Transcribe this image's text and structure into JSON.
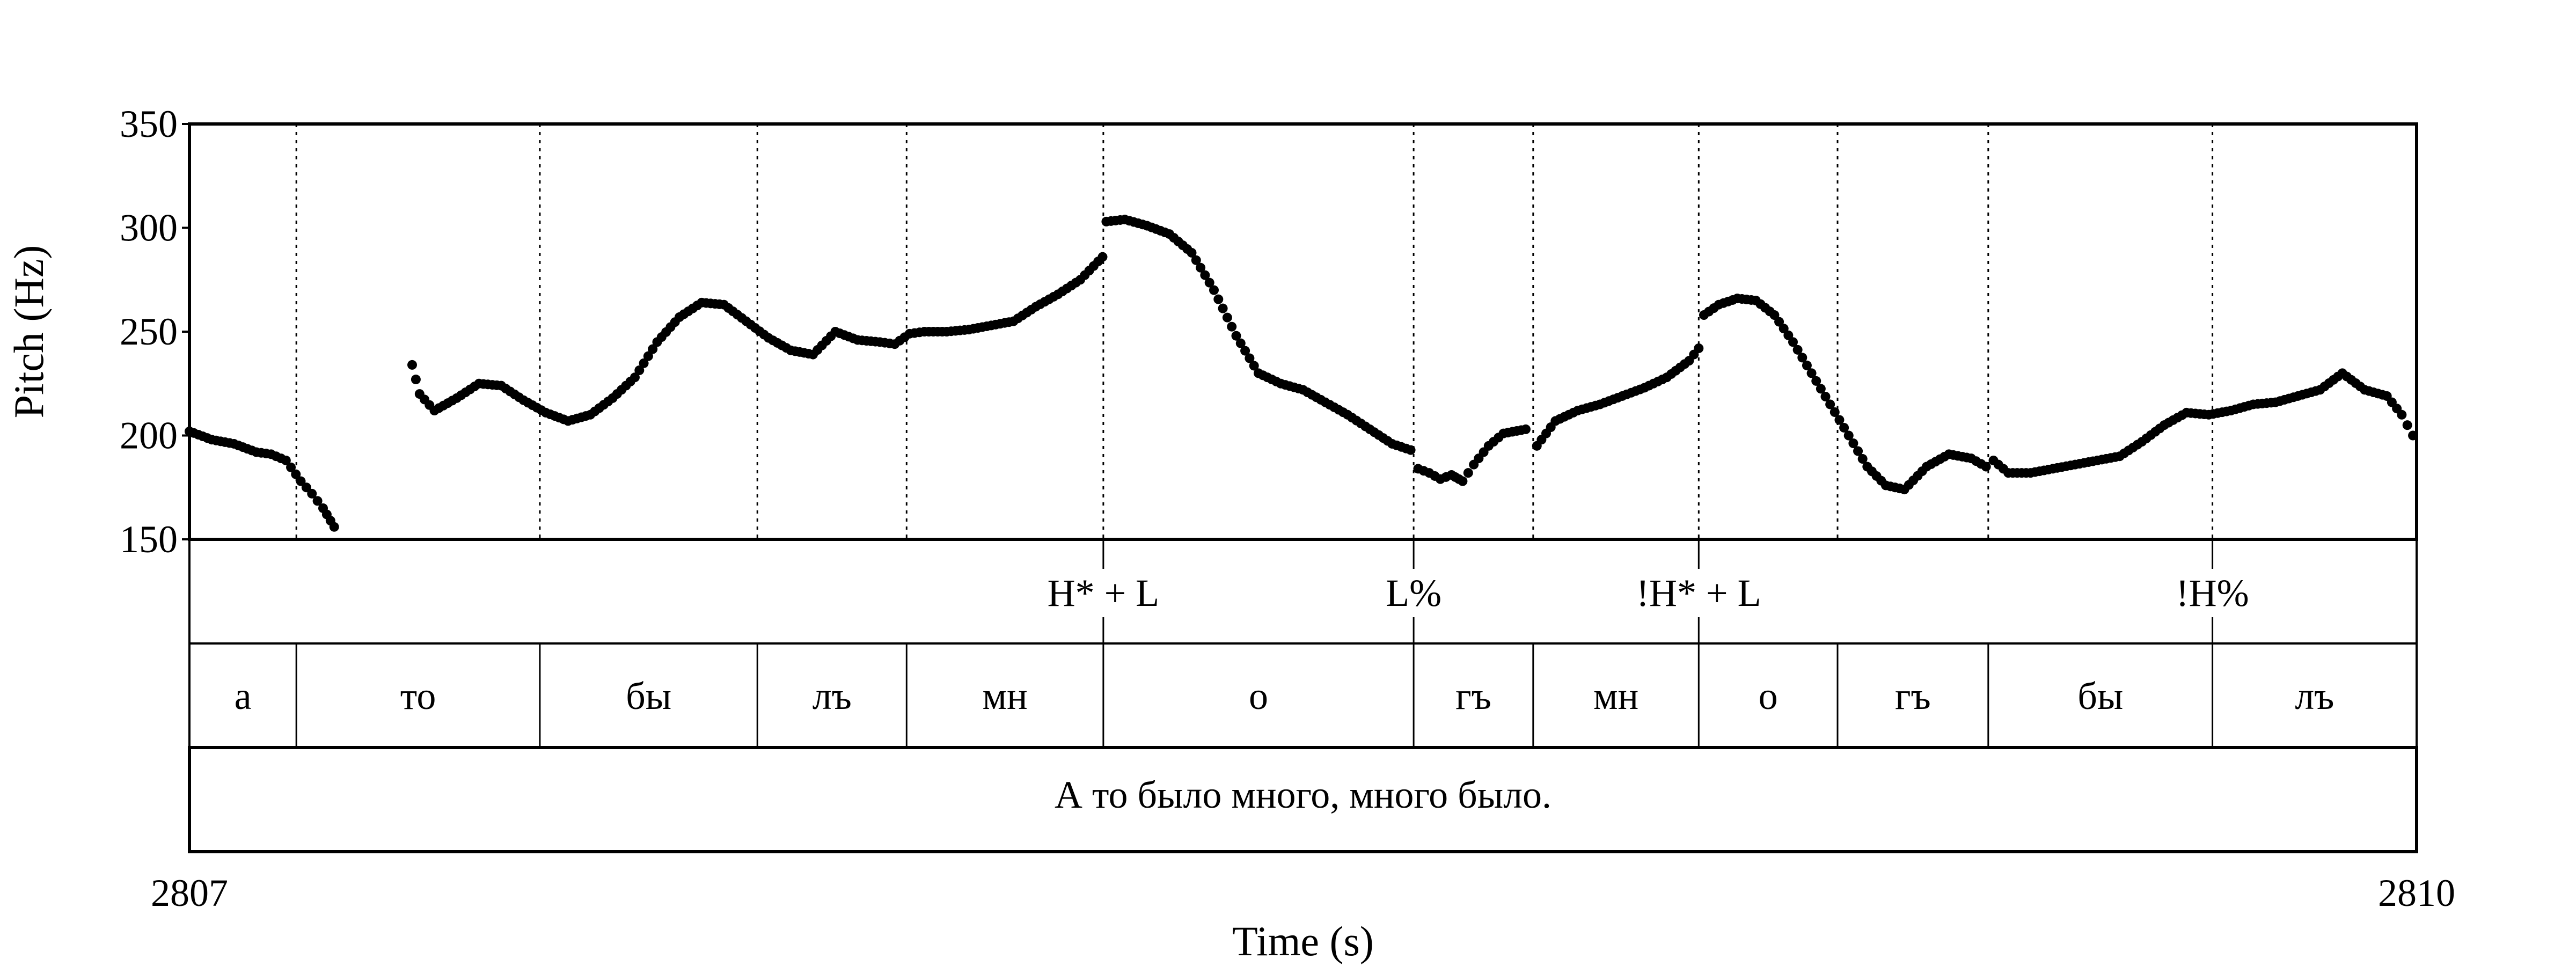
{
  "chart_data": {
    "type": "scatter",
    "xlabel": "Time (s)",
    "ylabel": "Pitch (Hz)",
    "xlim": [
      2807,
      2810
    ],
    "ylim": [
      150,
      350
    ],
    "x_ticks": [
      "2807",
      "2810"
    ],
    "y_ticks": [
      350,
      300,
      250,
      200,
      150
    ],
    "grid": false,
    "legend": "none",
    "point_color": "#000000",
    "boundaries": [
      2807.144,
      2807.472,
      2807.765,
      2807.966,
      2808.231,
      2808.649,
      2808.81,
      2809.033,
      2809.22,
      2809.423,
      2809.725
    ],
    "tones": [
      {
        "label": "H* + L",
        "t": 2808.231
      },
      {
        "label": "L%",
        "t": 2808.649
      },
      {
        "label": "!H* + L",
        "t": 2809.033
      },
      {
        "label": "!H%",
        "t": 2809.725
      }
    ],
    "syllables": [
      {
        "label": "а",
        "start": 2807.0,
        "end": 2807.144
      },
      {
        "label": "то",
        "start": 2807.144,
        "end": 2807.472
      },
      {
        "label": "бы",
        "start": 2807.472,
        "end": 2807.765
      },
      {
        "label": "лъ",
        "start": 2807.765,
        "end": 2807.966
      },
      {
        "label": "мн",
        "start": 2807.966,
        "end": 2808.231
      },
      {
        "label": "о",
        "start": 2808.231,
        "end": 2808.649
      },
      {
        "label": "гъ",
        "start": 2808.649,
        "end": 2808.81
      },
      {
        "label": "мн",
        "start": 2808.81,
        "end": 2809.033
      },
      {
        "label": "о",
        "start": 2809.033,
        "end": 2809.22
      },
      {
        "label": "гъ",
        "start": 2809.22,
        "end": 2809.423
      },
      {
        "label": "бы",
        "start": 2809.423,
        "end": 2809.725
      },
      {
        "label": "лъ",
        "start": 2809.725,
        "end": 2810.0
      }
    ],
    "sentence": "А то было много, много было.",
    "pitch_segments": [
      {
        "x": [
          2807.0,
          2807.03,
          2807.06,
          2807.09,
          2807.11,
          2807.13,
          2807.15,
          2807.165,
          2807.18,
          2807.195
        ],
        "y": [
          202,
          198,
          196,
          192,
          191,
          188,
          178,
          172,
          165,
          156
        ]
      },
      {
        "x": [
          2807.3,
          2807.31,
          2807.33,
          2807.36,
          2807.39,
          2807.42,
          2807.45,
          2807.48,
          2807.51,
          2807.54,
          2807.57,
          2807.6,
          2807.63,
          2807.66,
          2807.69,
          2807.72,
          2807.75,
          2807.78,
          2807.81,
          2807.84,
          2807.87,
          2807.9,
          2807.93,
          2807.95,
          2807.97,
          2807.99,
          2808.02,
          2808.05,
          2808.08,
          2808.11,
          2808.14,
          2808.17,
          2808.2,
          2808.23
        ],
        "y": [
          234,
          220,
          212,
          218,
          225,
          224,
          217,
          211,
          207,
          210,
          218,
          228,
          245,
          257,
          264,
          263,
          255,
          247,
          241,
          239,
          250,
          246,
          245,
          244,
          249,
          250,
          250,
          251,
          253,
          255,
          262,
          268,
          275,
          286
        ]
      },
      {
        "x": [
          2808.235,
          2808.26,
          2808.29,
          2808.32,
          2808.35,
          2808.38,
          2808.41,
          2808.44,
          2808.47,
          2808.5,
          2808.53,
          2808.56,
          2808.59,
          2808.62,
          2808.645
        ],
        "y": [
          303,
          304,
          301,
          297,
          288,
          270,
          248,
          230,
          225,
          222,
          216,
          210,
          203,
          196,
          193
        ]
      },
      {
        "x": [
          2808.655,
          2808.67,
          2808.685,
          2808.7,
          2808.715,
          2808.73,
          2808.75,
          2808.77,
          2808.8
        ],
        "y": [
          184,
          182,
          179,
          181,
          178,
          186,
          195,
          201,
          203
        ]
      },
      {
        "x": [
          2808.815,
          2808.84,
          2808.87,
          2808.9,
          2808.93,
          2808.96,
          2808.99,
          2809.02,
          2809.033
        ],
        "y": [
          195,
          207,
          212,
          215,
          219,
          223,
          228,
          236,
          242
        ]
      },
      {
        "x": [
          2809.04,
          2809.06,
          2809.085,
          2809.11,
          2809.135,
          2809.16,
          2809.185,
          2809.21,
          2809.235,
          2809.26,
          2809.285,
          2809.31,
          2809.34,
          2809.37,
          2809.4,
          2809.42
        ],
        "y": [
          258,
          263,
          266,
          265,
          258,
          245,
          230,
          215,
          200,
          185,
          176,
          174,
          185,
          191,
          189,
          185
        ]
      },
      {
        "x": [
          2809.43,
          2809.45,
          2809.48,
          2809.51,
          2809.54,
          2809.57,
          2809.6,
          2809.63,
          2809.66,
          2809.69,
          2809.72,
          2809.75,
          2809.78,
          2809.81,
          2809.84,
          2809.87,
          2809.9,
          2809.93,
          2809.96,
          2809.98,
          2809.995
        ],
        "y": [
          188,
          182,
          182,
          184,
          186,
          188,
          190,
          197,
          205,
          211,
          210,
          212,
          215,
          216,
          219,
          222,
          230,
          222,
          219,
          210,
          200
        ]
      }
    ]
  }
}
